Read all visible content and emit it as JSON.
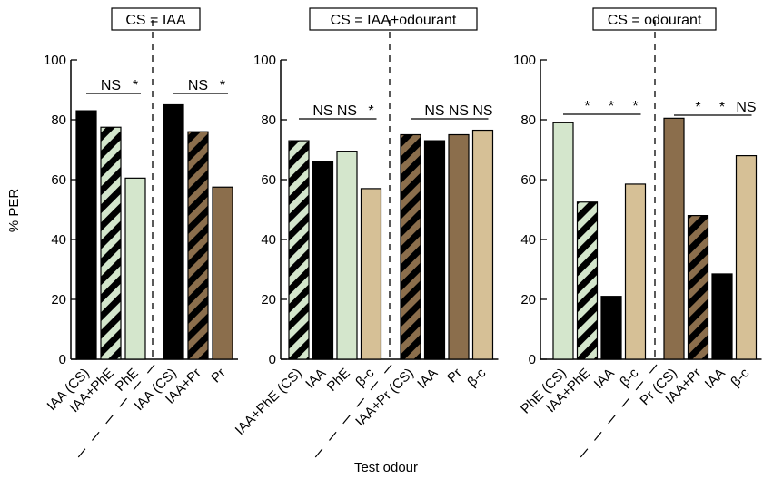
{
  "chart_data": {
    "type": "bar",
    "ylabel": "% PER",
    "xlabel": "Test odour",
    "ylim": [
      0,
      100
    ],
    "yticks": [
      0,
      20,
      40,
      60,
      80,
      100
    ],
    "colors": {
      "IAA": "#000000",
      "PhE": "#d4e6cc",
      "Pr": "#8b6e4c",
      "beta_c": "#d6c096",
      "IAA+PhE": "stripes black/#d4e6cc",
      "IAA+Pr": "stripes black/#8b6e4c"
    },
    "panels": [
      {
        "title": "CS = IAA",
        "groups": [
          {
            "bars": [
              {
                "label": "IAA (CS)",
                "value": 83,
                "fill": "IAA"
              },
              {
                "label": "IAA+PhE",
                "value": 77.5,
                "fill": "IAA+PhE"
              },
              {
                "label": "PhE",
                "value": 60.5,
                "fill": "PhE"
              }
            ],
            "significance": [
              "NS",
              "*"
            ]
          },
          {
            "bars": [
              {
                "label": "IAA (CS)",
                "value": 85,
                "fill": "IAA"
              },
              {
                "label": "IAA+Pr",
                "value": 76,
                "fill": "IAA+Pr"
              },
              {
                "label": "Pr",
                "value": 57.5,
                "fill": "Pr"
              }
            ],
            "significance": [
              "NS",
              "*"
            ]
          }
        ]
      },
      {
        "title": "CS = IAA+odourant",
        "groups": [
          {
            "bars": [
              {
                "label": "IAA+PhE (CS)",
                "value": 73,
                "fill": "IAA+PhE"
              },
              {
                "label": "IAA",
                "value": 66,
                "fill": "IAA"
              },
              {
                "label": "PhE",
                "value": 69.5,
                "fill": "PhE"
              },
              {
                "label": "β-c",
                "value": 57,
                "fill": "beta_c"
              }
            ],
            "significance": [
              "NS",
              "NS",
              "*"
            ]
          },
          {
            "bars": [
              {
                "label": "IAA+Pr (CS)",
                "value": 75,
                "fill": "IAA+Pr"
              },
              {
                "label": "IAA",
                "value": 73,
                "fill": "IAA"
              },
              {
                "label": "Pr",
                "value": 75,
                "fill": "Pr"
              },
              {
                "label": "β-c",
                "value": 76.5,
                "fill": "beta_c"
              }
            ],
            "significance": [
              "NS",
              "NS",
              "NS"
            ]
          }
        ]
      },
      {
        "title": "CS = odourant",
        "groups": [
          {
            "bars": [
              {
                "label": "PhE (CS)",
                "value": 79,
                "fill": "PhE"
              },
              {
                "label": "IAA+PhE",
                "value": 52.5,
                "fill": "IAA+PhE"
              },
              {
                "label": "IAA",
                "value": 21,
                "fill": "IAA"
              },
              {
                "label": "β-c",
                "value": 58.5,
                "fill": "beta_c"
              }
            ],
            "significance": [
              "*",
              "*",
              "*"
            ]
          },
          {
            "bars": [
              {
                "label": "Pr (CS)",
                "value": 80.5,
                "fill": "Pr"
              },
              {
                "label": "IAA+Pr",
                "value": 48,
                "fill": "IAA+Pr"
              },
              {
                "label": "IAA",
                "value": 28.5,
                "fill": "IAA"
              },
              {
                "label": "β-c",
                "value": 68,
                "fill": "beta_c"
              }
            ],
            "significance": [
              "*",
              "*",
              "NS"
            ]
          }
        ]
      }
    ]
  }
}
